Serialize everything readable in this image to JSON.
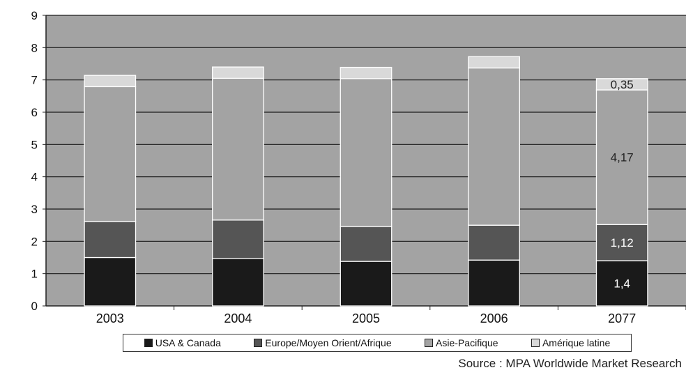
{
  "chart_data": {
    "type": "bar",
    "stacked": true,
    "categories": [
      "2003",
      "2004",
      "2005",
      "2006",
      "2077"
    ],
    "series": [
      {
        "name": "USA & Canada",
        "color": "#1a1a1a",
        "values": [
          1.5,
          1.47,
          1.38,
          1.42,
          1.4
        ]
      },
      {
        "name": "Europe/Moyen Orient/Afrique",
        "color": "#555555",
        "values": [
          1.12,
          1.19,
          1.08,
          1.08,
          1.12
        ]
      },
      {
        "name": "Asie-Pacifique",
        "color": "#a3a3a3",
        "values": [
          4.17,
          4.39,
          4.58,
          4.87,
          4.17
        ]
      },
      {
        "name": "Amérique latine",
        "color": "#d9d9d9",
        "values": [
          0.35,
          0.35,
          0.35,
          0.35,
          0.35
        ]
      }
    ],
    "data_labels": [
      {
        "category": "2077",
        "series": "USA & Canada",
        "text": "1,4"
      },
      {
        "category": "2077",
        "series": "Europe/Moyen Orient/Afrique",
        "text": "1,12"
      },
      {
        "category": "2077",
        "series": "Asie-Pacifique",
        "text": "4,17"
      },
      {
        "category": "2077",
        "series": "Amérique latine",
        "text": "0,35"
      }
    ],
    "yticks": [
      "0",
      "1",
      "2",
      "3",
      "4",
      "5",
      "6",
      "7",
      "8",
      "9"
    ],
    "ylim": [
      0,
      9
    ],
    "grid": true,
    "plot_background": "#a3a3a3",
    "legend_position": "bottom",
    "title": "",
    "xlabel": "",
    "ylabel": ""
  },
  "source": "Source : MPA Worldwide Market Research"
}
